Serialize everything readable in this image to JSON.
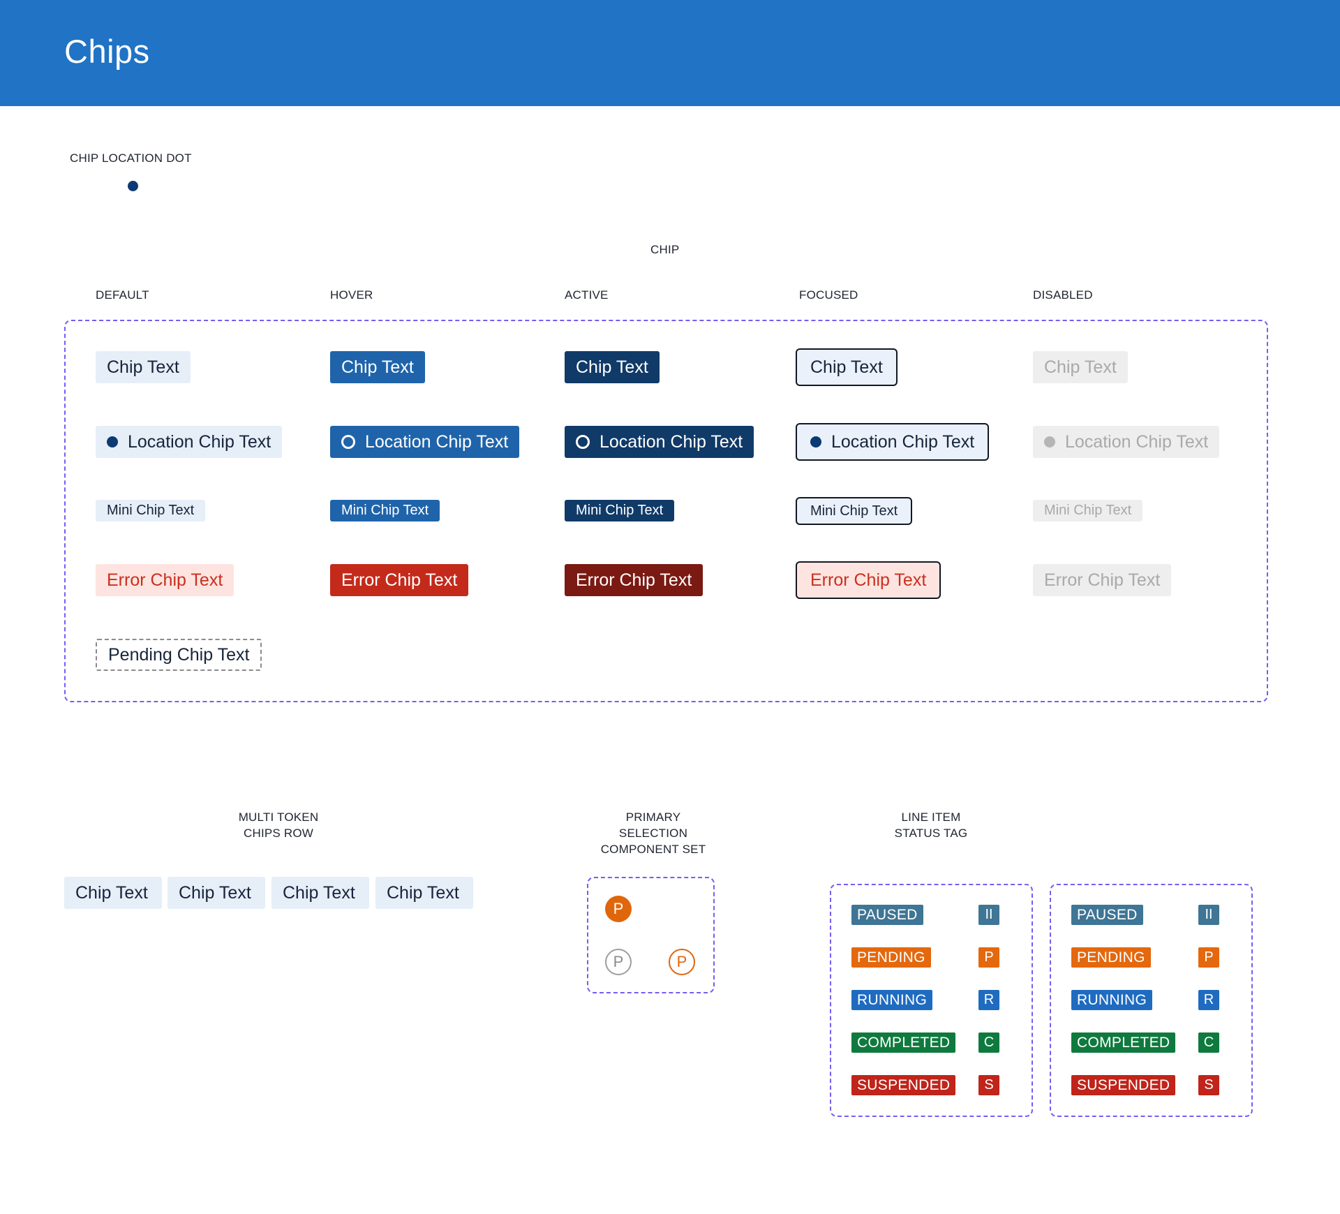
{
  "header": {
    "title": "Chips"
  },
  "sections": {
    "location_dot": "CHIP LOCATION DOT",
    "chip": "CHIP",
    "multi_token": "MULTI TOKEN CHIPS ROW",
    "multi_token_lines": [
      "MULTI TOKEN",
      "CHIPS ROW"
    ],
    "primary_selection_lines": [
      "PRIMARY",
      "SELECTION",
      "COMPONENT SET"
    ],
    "line_item_lines": [
      "LINE ITEM",
      "STATUS TAG"
    ]
  },
  "states": [
    "DEFAULT",
    "HOVER",
    "ACTIVE",
    "FOCUSED",
    "DISABLED"
  ],
  "chips": {
    "standard": "Chip Text",
    "location": "Location Chip Text",
    "mini": "Mini Chip Text",
    "error": "Error Chip Text",
    "pending": "Pending Chip Text"
  },
  "multi_token_chips": [
    "Chip Text",
    "Chip Text",
    "Chip Text",
    "Chip Text"
  ],
  "primary_selection": {
    "letter": "P"
  },
  "status_tags": [
    {
      "label": "PAUSED",
      "short": "II",
      "status": "paused"
    },
    {
      "label": "PENDING",
      "short": "P",
      "status": "pending"
    },
    {
      "label": "RUNNING",
      "short": "R",
      "status": "running"
    },
    {
      "label": "COMPLETED",
      "short": "C",
      "status": "completed"
    },
    {
      "label": "SUSPENDED",
      "short": "S",
      "status": "suspended"
    }
  ],
  "colors": {
    "header": "#2073c5",
    "dashed_border": "#7a5cf0",
    "chip_default_bg": "#e6eef8",
    "chip_hover_bg": "#1f64aa",
    "chip_active_bg": "#103a68",
    "error_hover_bg": "#c42a1a",
    "error_active_bg": "#7a1a12",
    "selection_orange": "#e0660c",
    "paused": "#3f7595",
    "pending": "#e3680e",
    "running": "#1f6bc0",
    "completed": "#0f7a3d",
    "suspended": "#c0241a"
  }
}
